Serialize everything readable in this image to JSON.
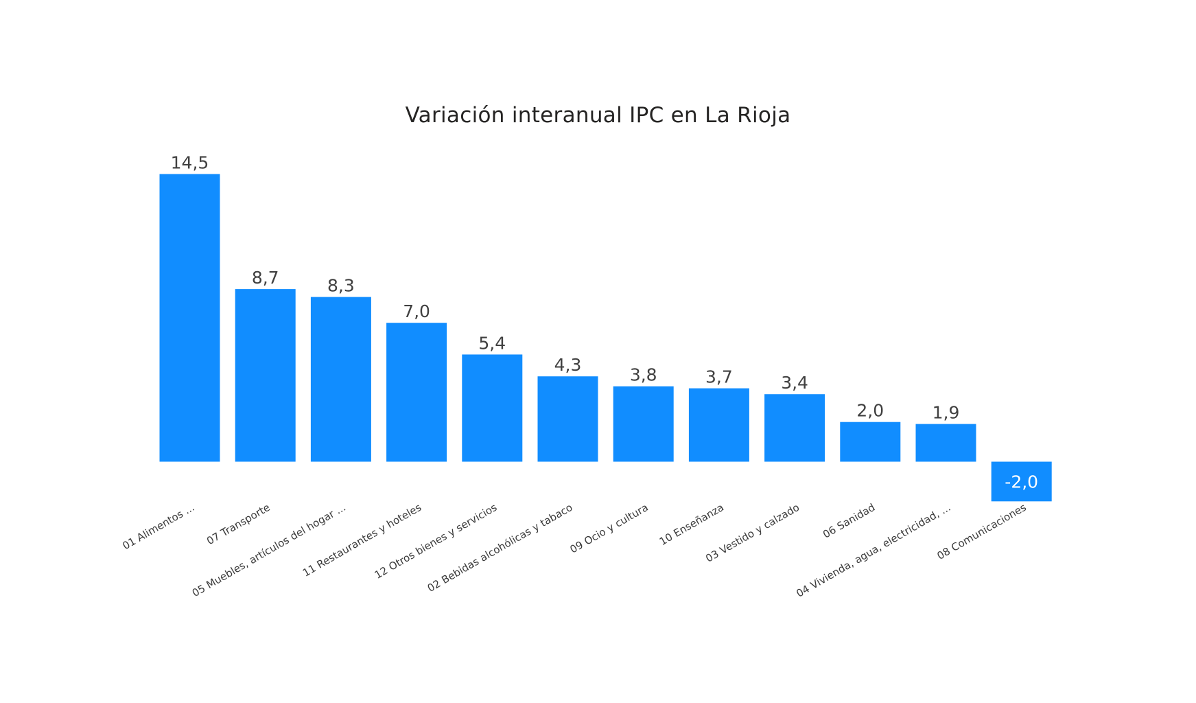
{
  "chart_data": {
    "type": "bar",
    "title": "Variación interanual IPC en La Rioja",
    "xlabel": "",
    "ylabel": "",
    "grid": false,
    "legend": "none",
    "bar_color": "#118DFF",
    "ylim": [
      -2.0,
      14.5
    ],
    "categories": [
      "01 Alimentos ...",
      "07 Transporte",
      "05 Muebles, artículos del hogar ...",
      "11 Restaurantes y hoteles",
      "12 Otros bienes y servicios",
      "02 Bebidas alcohólicas y tabaco",
      "09 Ocio y cultura",
      "10 Enseñanza",
      "03 Vestido y calzado",
      "06 Sanidad",
      "04 Vivienda, agua, electricidad, ...",
      "08 Comunicaciones"
    ],
    "values": [
      14.5,
      8.7,
      8.3,
      7.0,
      5.4,
      4.3,
      3.8,
      3.7,
      3.4,
      2.0,
      1.9,
      -2.0
    ],
    "value_labels": [
      "14,5",
      "8,7",
      "8,3",
      "7,0",
      "5,4",
      "4,3",
      "3,8",
      "3,7",
      "3,4",
      "2,0",
      "1,9",
      "-2,0"
    ]
  }
}
